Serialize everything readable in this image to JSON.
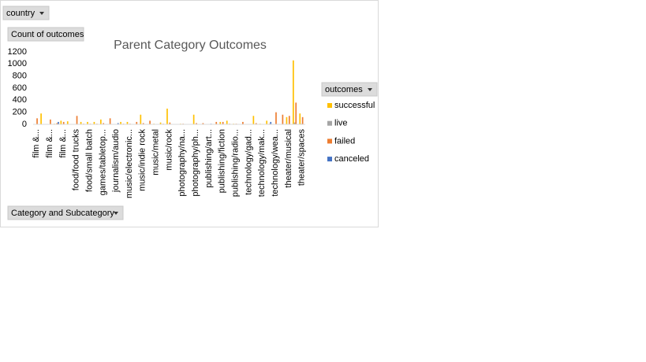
{
  "chart_data": {
    "type": "bar",
    "title": "Parent Category Outcomes",
    "filter_label": "country",
    "value_field_label": "Count of outcomes",
    "axis_field_label": "Category and Subcategory",
    "legend_title": "outcomes",
    "categories": [
      "film &...",
      null,
      "film &...",
      null,
      "film &...",
      null,
      "food/food trucks",
      null,
      "food/small batch",
      null,
      "games/tabletop...",
      null,
      "journalism/audio",
      null,
      "music/electronic...",
      null,
      "music/indie rock",
      null,
      "music/metal",
      null,
      "music/rock",
      null,
      "photography/na...",
      null,
      "photography/ph...",
      null,
      "publishing/art...",
      null,
      "publishing/fiction",
      null,
      "publishing/radio...",
      null,
      "technology/gad...",
      null,
      "technology/mak...",
      null,
      "technology/wea...",
      null,
      "theater/musical",
      null,
      "theater/spaces"
    ],
    "series": [
      {
        "name": "successful",
        "color": "#ffc000",
        "values": [
          0,
          180,
          0,
          10,
          60,
          50,
          0,
          40,
          40,
          40,
          80,
          0,
          0,
          40,
          40,
          0,
          160,
          0,
          10,
          30,
          260,
          5,
          10,
          5,
          160,
          0,
          0,
          0,
          40,
          60,
          10,
          0,
          0,
          140,
          10,
          60,
          0,
          0,
          120,
          1060,
          180
        ]
      },
      {
        "name": "live",
        "color": "#a5a5a5",
        "values": [
          0,
          0,
          0,
          0,
          0,
          0,
          0,
          0,
          0,
          0,
          0,
          0,
          0,
          0,
          0,
          0,
          0,
          0,
          0,
          0,
          0,
          0,
          0,
          0,
          0,
          0,
          0,
          0,
          0,
          0,
          0,
          0,
          0,
          0,
          0,
          0,
          0,
          0,
          0,
          30,
          10
        ]
      },
      {
        "name": "failed",
        "color": "#ed7d31",
        "values": [
          100,
          0,
          80,
          20,
          40,
          0,
          140,
          10,
          10,
          10,
          20,
          100,
          0,
          10,
          10,
          40,
          20,
          60,
          5,
          10,
          30,
          5,
          10,
          5,
          20,
          20,
          5,
          40,
          40,
          10,
          10,
          40,
          5,
          20,
          5,
          10,
          200,
          160,
          140,
          360,
          120
        ]
      },
      {
        "name": "canceled",
        "color": "#4472c4",
        "values": [
          0,
          0,
          0,
          40,
          0,
          0,
          0,
          0,
          0,
          0,
          0,
          0,
          20,
          0,
          0,
          0,
          0,
          0,
          0,
          0,
          0,
          0,
          0,
          0,
          0,
          0,
          10,
          0,
          0,
          0,
          0,
          0,
          0,
          0,
          0,
          40,
          0,
          0,
          0,
          0,
          0
        ]
      }
    ],
    "ylim": [
      0,
      1200
    ],
    "yticks": [
      0,
      200,
      400,
      600,
      800,
      1000,
      1200
    ],
    "grid": false,
    "legend": "right"
  }
}
